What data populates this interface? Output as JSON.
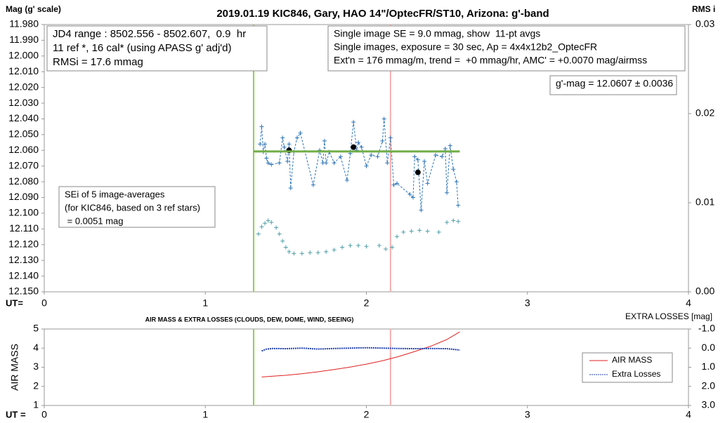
{
  "chart_data": [
    {
      "type": "scatter",
      "title": "2019.01.19 KIC846, Gary, HAO 14\"/OptecFR/ST10, Arizona: g'-band",
      "y_label": "Mag (g' scale)",
      "y2_label": "RMS i",
      "x_label": "UT=",
      "xlim": [
        0,
        4
      ],
      "xticks": [
        0,
        1,
        2,
        3,
        4
      ],
      "ylim": [
        12.15,
        11.98
      ],
      "yticks": [
        {
          "value": 11.98,
          "label": "11.980"
        },
        {
          "value": 11.99,
          "label": "11.990"
        },
        {
          "value": 12.0,
          "label": "12.000"
        },
        {
          "value": 12.01,
          "label": "12.010"
        },
        {
          "value": 12.02,
          "label": "12.020"
        },
        {
          "value": 12.03,
          "label": "12.030"
        },
        {
          "value": 12.04,
          "label": "12.040"
        },
        {
          "value": 12.05,
          "label": "12.050"
        },
        {
          "value": 12.06,
          "label": "12.060"
        },
        {
          "value": 12.07,
          "label": "12.070"
        },
        {
          "value": 12.08,
          "label": "12.080"
        },
        {
          "value": 12.09,
          "label": "12.090"
        },
        {
          "value": 12.1,
          "label": "12.100"
        },
        {
          "value": 12.11,
          "label": "12.110"
        },
        {
          "value": 12.12,
          "label": "12.120"
        },
        {
          "value": 12.13,
          "label": "12.130"
        },
        {
          "value": 12.14,
          "label": "12.140"
        },
        {
          "value": 12.15,
          "label": "12.150"
        }
      ],
      "y2lim": [
        0,
        0.03
      ],
      "y2ticks": [
        {
          "value": 0,
          "label": "0.00"
        },
        {
          "value": 0.01,
          "label": "0.01"
        },
        {
          "value": 0.02,
          "label": "0.02"
        },
        {
          "value": 0.03,
          "label": "0.03"
        }
      ],
      "grid": false,
      "vlines": [
        {
          "x": 1.3,
          "color": "#92d050"
        },
        {
          "x": 2.15,
          "color": "#f4b0b0"
        }
      ],
      "series": [
        {
          "color": "#2e75b6",
          "marker": "plus",
          "line": "dashed",
          "x": [
            1.34,
            1.35,
            1.36,
            1.37,
            1.38,
            1.39,
            1.41,
            1.46,
            1.48,
            1.49,
            1.51,
            1.52,
            1.53,
            1.55,
            1.57,
            1.59,
            1.67,
            1.71,
            1.73,
            1.74,
            1.75,
            1.77,
            1.8,
            1.84,
            1.88,
            1.9,
            1.92,
            1.94,
            1.95,
            1.97,
            2.0,
            2.03,
            2.07,
            2.1,
            2.11,
            2.13,
            2.15,
            2.17,
            2.19,
            2.27,
            2.29,
            2.3,
            2.32,
            2.34,
            2.36,
            2.38,
            2.43,
            2.47,
            2.49,
            2.5,
            2.52,
            2.54,
            2.56,
            2.57
          ],
          "values": [
            12.056,
            12.045,
            12.061,
            12.056,
            12.065,
            12.068,
            12.069,
            12.068,
            12.052,
            12.058,
            12.067,
            12.056,
            12.084,
            12.061,
            12.052,
            12.049,
            12.082,
            12.06,
            12.068,
            12.054,
            12.068,
            12.061,
            12.068,
            12.064,
            12.079,
            12.062,
            12.042,
            12.06,
            12.055,
            12.058,
            12.07,
            12.063,
            12.064,
            12.054,
            12.04,
            12.068,
            12.052,
            12.082,
            12.081,
            12.088,
            12.09,
            12.064,
            12.066,
            12.098,
            12.067,
            12.081,
            12.063,
            12.064,
            12.059,
            12.087,
            12.057,
            12.072,
            12.08,
            12.095
          ]
        },
        {
          "color": "#000000",
          "marker": "dot",
          "x": [
            1.52,
            1.92,
            2.32
          ],
          "values": [
            12.06,
            12.058,
            12.074
          ]
        },
        {
          "color": "#70ad47",
          "marker": "none",
          "line": "thick",
          "x": [
            1.3,
            2.58
          ],
          "values": [
            12.0607,
            12.0607
          ]
        },
        {
          "color": "#4f9fa8",
          "marker": "plus",
          "axis": "y2",
          "x": [
            1.33,
            1.35,
            1.37,
            1.39,
            1.41,
            1.44,
            1.46,
            1.48,
            1.5,
            1.52,
            1.55,
            1.6,
            1.65,
            1.7,
            1.75,
            1.8,
            1.85,
            1.9,
            1.95,
            2.0,
            2.08,
            2.12,
            2.16,
            2.19,
            2.23,
            2.28,
            2.33,
            2.38,
            2.45,
            2.5,
            2.54,
            2.57
          ],
          "values": [
            0.0065,
            0.0073,
            0.0077,
            0.008,
            0.0078,
            0.0072,
            0.0065,
            0.0057,
            0.005,
            0.0045,
            0.0043,
            0.0043,
            0.0044,
            0.0044,
            0.0045,
            0.0047,
            0.005,
            0.0052,
            0.0052,
            0.0051,
            0.0052,
            0.0048,
            0.005,
            0.0062,
            0.0067,
            0.0068,
            0.0069,
            0.0068,
            0.0067,
            0.0078,
            0.008,
            0.0079
          ]
        }
      ],
      "annotations": [
        {
          "lines": [
            "JD4 range : 8502.556 - 8502.607,  0.9  hr",
            "11 ref *, 16 cal* (using APASS g' adj'd)",
            "RMSi = 17.6 mmag"
          ]
        },
        {
          "lines": [
            "Single image SE = 9.0 mmag, show  11-pt avgs",
            "Single images, exposure = 30 sec, Ap = 4x4x12b2_OptecFR",
            "Ext'n = 176 mmag/m, trend =  +0 mmag/hr, AMC' = +0.0070 mag/airmss"
          ]
        },
        {
          "lines": [
            "g'-mag = 12.0607 ± 0.0036"
          ]
        },
        {
          "lines": [
            "SEi of 5 image-averages",
            "(for KIC846, based on 3 ref stars)",
            " = 0.0051 mag"
          ]
        }
      ]
    },
    {
      "type": "line",
      "title": "AIR MASS & EXTRA LOSSES (CLOUDS, DEW, DOME, WIND, SEEING)",
      "y_label": "AIR MASS",
      "y2_label": "EXTRA LOSSES [mag]",
      "x_label": "UT =",
      "xlim": [
        0,
        4
      ],
      "xticks": [
        0,
        1,
        2,
        3,
        4
      ],
      "ylim": [
        1,
        5
      ],
      "yticks": [
        1,
        2,
        3,
        4,
        5
      ],
      "y2lim": [
        3,
        -1
      ],
      "y2ticks": [
        {
          "value": -1,
          "label": "-1.0"
        },
        {
          "value": 0,
          "label": "0.0"
        },
        {
          "value": 1,
          "label": "1.0"
        },
        {
          "value": 2,
          "label": "2.0"
        },
        {
          "value": 3,
          "label": "3.0"
        }
      ],
      "grid": false,
      "legend": "lower right",
      "vlines": [
        {
          "x": 1.3,
          "color": "#92d050"
        },
        {
          "x": 2.15,
          "color": "#f4b0b0"
        }
      ],
      "series": [
        {
          "name": "AIR MASS",
          "color": "#e02020",
          "line": "solid",
          "x": [
            1.35,
            1.5,
            1.6,
            1.7,
            1.8,
            1.9,
            2.0,
            2.1,
            2.2,
            2.3,
            2.4,
            2.5,
            2.58
          ],
          "values": [
            2.49,
            2.58,
            2.66,
            2.76,
            2.88,
            3.01,
            3.16,
            3.34,
            3.56,
            3.82,
            4.1,
            4.45,
            4.85
          ]
        },
        {
          "name": "Extra Losses",
          "color": "#1f3fa8",
          "line": "dotted",
          "axis": "y2",
          "x": [
            1.35,
            1.38,
            1.42,
            1.5,
            1.6,
            1.7,
            1.8,
            1.9,
            2.0,
            2.1,
            2.2,
            2.3,
            2.4,
            2.5,
            2.58
          ],
          "values": [
            0.15,
            0.05,
            0.02,
            0.03,
            0,
            0.05,
            0.02,
            0,
            -0.02,
            0,
            0.02,
            0.03,
            0.02,
            0.03,
            0.1
          ]
        }
      ]
    }
  ]
}
